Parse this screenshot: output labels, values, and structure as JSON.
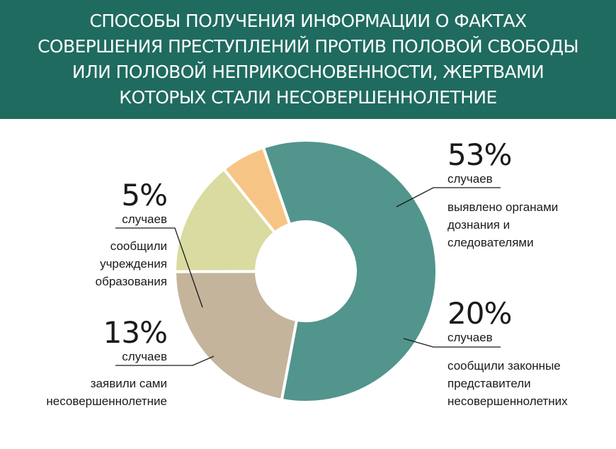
{
  "header": {
    "title": "СПОСОБЫ ПОЛУЧЕНИЯ ИНФОРМАЦИИ О ФАКТАХ\nСОВЕРШЕНИЯ ПРЕСТУПЛЕНИЙ ПРОТИВ ПОЛОВОЙ СВОБОДЫ\nИЛИ ПОЛОВОЙ НЕПРИКОСНОВЕННОСТИ, ЖЕРТВАМИ\nКОТОРЫХ СТАЛИ НЕСОВЕРШЕННОЛЕТНИЕ"
  },
  "chart_data": {
    "type": "pie",
    "donut": true,
    "legend": "none",
    "unit_label": "случаев",
    "slices": [
      {
        "label": "выявлено органами дознания и следователями",
        "value": 53,
        "display": "53%",
        "color": "#52958d"
      },
      {
        "label": "сообщили законные представители несовершеннолетних",
        "value": 20,
        "display": "20%",
        "color": "#c3b49b"
      },
      {
        "label": "заявили сами несовершеннолетние",
        "value": 13,
        "display": "13%",
        "color": "#d9dba0"
      },
      {
        "label": "сообщили учреждения образования",
        "value": 5,
        "display": "5%",
        "color": "#f6c585"
      }
    ]
  },
  "callouts": {
    "a53": {
      "pct": "53%",
      "cases": "случаев",
      "desc": "выявлено органами\nдознания и\nследователями"
    },
    "a20": {
      "pct": "20%",
      "cases": "случаев",
      "desc": "сообщили законные\nпредставители\nнесовершеннолетних"
    },
    "a5": {
      "pct": "5%",
      "cases": "случаев",
      "desc": "сообщили\nучреждения\nобразования"
    },
    "a13": {
      "pct": "13%",
      "cases": "случаев",
      "desc": "заявили сами\nнесовершеннолетние"
    }
  }
}
